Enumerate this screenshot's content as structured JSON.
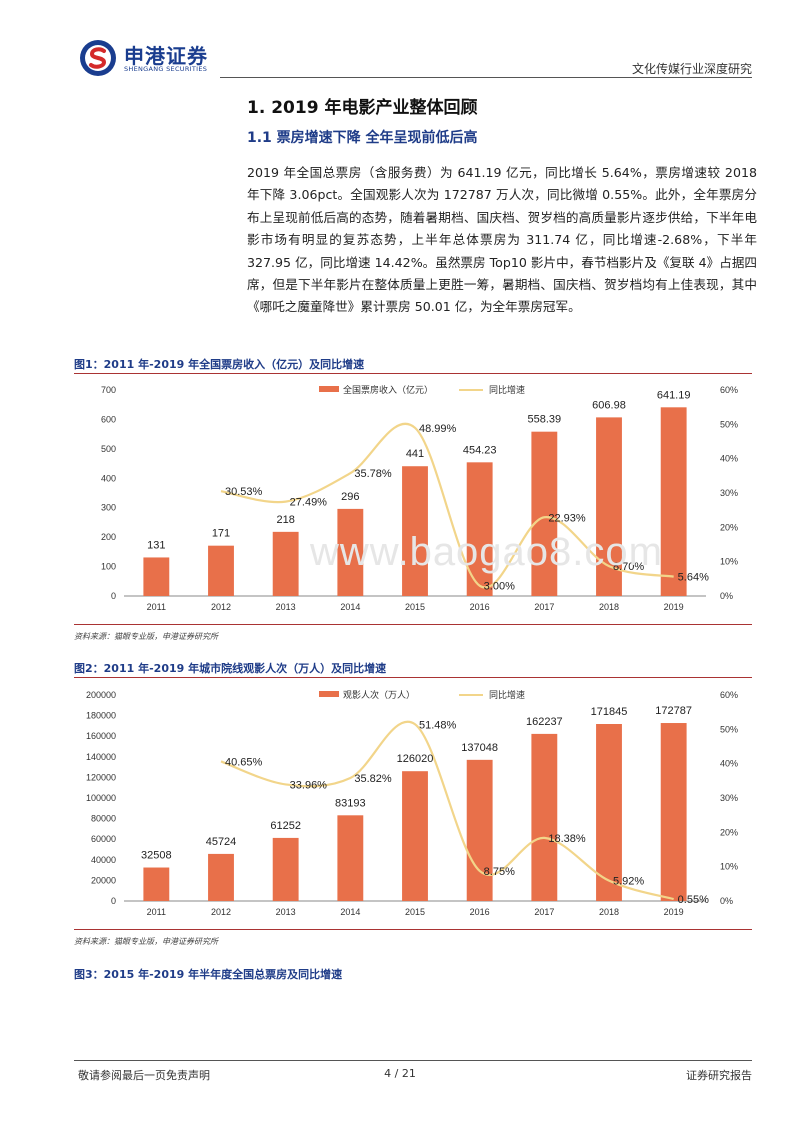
{
  "header": {
    "logo_cn": "申港证券",
    "logo_en": "SHENGANG SECURITIES",
    "category": "文化传媒行业深度研究"
  },
  "section": {
    "h1": "1. 2019 年电影产业整体回顾",
    "h2": "1.1 票房增速下降 全年呈现前低后高",
    "paragraph": "2019 年全国总票房（含服务费）为 641.19 亿元，同比增长 5.64%，票房增速较 2018 年下降 3.06pct。全国观影人次为 172787 万人次，同比微增 0.55%。此外，全年票房分布上呈现前低后高的态势，随着暑期档、国庆档、贺岁档的高质量影片逐步供给，下半年电影市场有明显的复苏态势，上半年总体票房为 311.74 亿，同比增速-2.68%，下半年 327.95 亿，同比增速 14.42%。虽然票房 Top10 影片中，春节档影片及《复联 4》占据四席，但是下半年影片在整体质量上更胜一筹，暑期档、国庆档、贺岁档均有上佳表现，其中《哪吒之魔童降世》累计票房 50.01 亿，为全年票房冠军。"
  },
  "figures": {
    "fig1_title": "图1：2011 年-2019 年全国票房收入（亿元）及同比增速",
    "fig1_source": "资料来源：猫眼专业版，申港证券研究所",
    "fig2_title": "图2：2011 年-2019 年城市院线观影人次（万人）及同比增速",
    "fig2_source": "资料来源：猫眼专业版，申港证券研究所",
    "fig3_title": "图3：2015 年-2019 年半年度全国总票房及同比增速"
  },
  "watermark": "www.baogao8.com",
  "footer": {
    "left": "敬请参阅最后一页免责声明",
    "page": "4 / 21",
    "right": "证券研究报告"
  },
  "colors": {
    "bar": "#e8704a",
    "line": "#f2d58a",
    "title_blue": "#1f3c88"
  },
  "chart_data": [
    {
      "type": "bar",
      "categories": [
        "2011",
        "2012",
        "2013",
        "2014",
        "2015",
        "2016",
        "2017",
        "2018",
        "2019"
      ],
      "series": [
        {
          "name": "全国票房收入（亿元）",
          "type": "bar",
          "axis": "left",
          "values": [
            131,
            171,
            218,
            296,
            441,
            454.23,
            558.39,
            606.98,
            641.19
          ],
          "labels": [
            "131",
            "171",
            "218",
            "296",
            "441",
            "454.23",
            "558.39",
            "606.98",
            "641.19"
          ]
        },
        {
          "name": "同比增速",
          "type": "line",
          "axis": "right",
          "values": [
            null,
            30.53,
            27.49,
            35.78,
            48.99,
            3.0,
            22.93,
            8.7,
            5.64
          ],
          "labels": [
            "",
            "30.53%",
            "27.49%",
            "35.78%",
            "48.99%",
            "3.00%",
            "22.93%",
            "8.70%",
            "5.64%"
          ]
        }
      ],
      "ylim": [
        0,
        700
      ],
      "yticks": [
        0,
        100,
        200,
        300,
        400,
        500,
        600,
        700
      ],
      "y2lim": [
        0,
        60
      ],
      "y2ticks": [
        "0%",
        "10%",
        "20%",
        "30%",
        "40%",
        "50%",
        "60%"
      ],
      "legend": "top-center",
      "grid": false
    },
    {
      "type": "bar",
      "categories": [
        "2011",
        "2012",
        "2013",
        "2014",
        "2015",
        "2016",
        "2017",
        "2018",
        "2019"
      ],
      "series": [
        {
          "name": "观影人次（万人）",
          "type": "bar",
          "axis": "left",
          "values": [
            32508,
            45724,
            61252,
            83193,
            126020,
            137048,
            162237,
            171845,
            172787
          ],
          "labels": [
            "32508",
            "45724",
            "61252",
            "83193",
            "126020",
            "137048",
            "162237",
            "171845",
            "172787"
          ]
        },
        {
          "name": "同比增速",
          "type": "line",
          "axis": "right",
          "values": [
            null,
            40.65,
            33.96,
            35.82,
            51.48,
            8.75,
            18.38,
            5.92,
            0.55
          ],
          "labels": [
            "",
            "40.65%",
            "33.96%",
            "35.82%",
            "51.48%",
            "8.75%",
            "18.38%",
            "5.92%",
            "0.55%"
          ]
        }
      ],
      "ylim": [
        0,
        200000
      ],
      "yticks": [
        0,
        20000,
        40000,
        60000,
        80000,
        100000,
        120000,
        140000,
        160000,
        180000,
        200000
      ],
      "y2lim": [
        0,
        60
      ],
      "y2ticks": [
        "0%",
        "10%",
        "20%",
        "30%",
        "40%",
        "50%",
        "60%"
      ],
      "legend": "top-center",
      "grid": false
    }
  ]
}
